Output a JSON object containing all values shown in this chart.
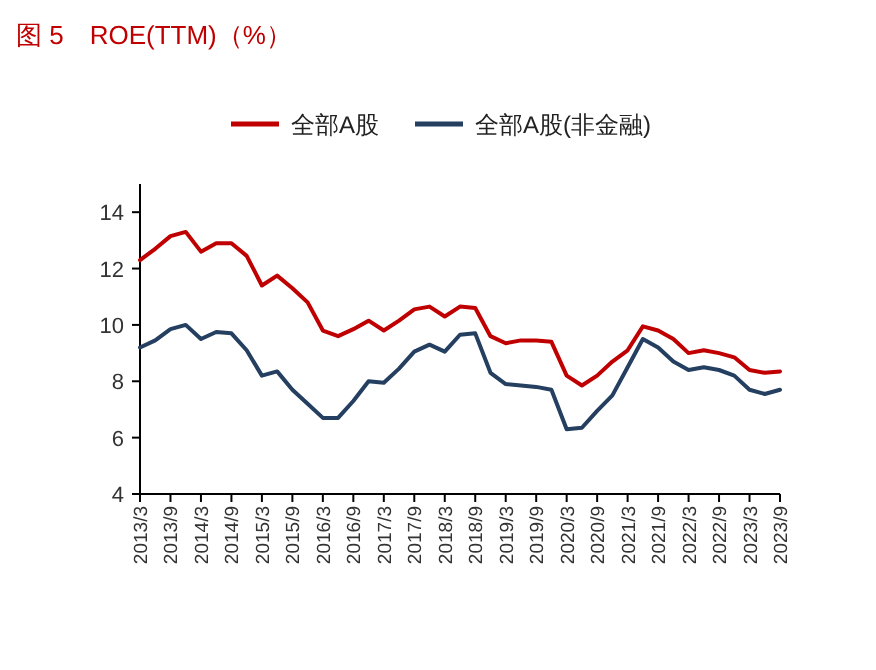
{
  "chart_data": {
    "type": "line",
    "title": "图 5　ROE(TTM)（%）",
    "categories": [
      "2013/3",
      null,
      "2013/9",
      null,
      "2014/3",
      null,
      "2014/9",
      null,
      "2015/3",
      null,
      "2015/9",
      null,
      "2016/3",
      null,
      "2016/9",
      null,
      "2017/3",
      null,
      "2017/9",
      null,
      "2018/3",
      null,
      "2018/9",
      null,
      "2019/3",
      null,
      "2019/9",
      null,
      "2020/3",
      null,
      "2020/9",
      null,
      "2021/3",
      null,
      "2021/9",
      null,
      "2022/3",
      null,
      "2022/9",
      null,
      "2023/3",
      null,
      "2023/9"
    ],
    "series": [
      {
        "name": "全部A股",
        "color": "#c00000",
        "values": [
          12.3,
          12.7,
          13.15,
          13.3,
          12.6,
          12.9,
          12.9,
          12.45,
          11.4,
          11.75,
          11.3,
          10.8,
          9.8,
          9.6,
          9.85,
          10.15,
          9.8,
          10.15,
          10.55,
          10.65,
          10.3,
          10.65,
          10.6,
          9.6,
          9.35,
          9.45,
          9.45,
          9.4,
          8.2,
          7.85,
          8.2,
          8.7,
          9.1,
          9.95,
          9.8,
          9.5,
          9.0,
          9.1,
          9.0,
          8.85,
          8.4,
          8.3,
          8.35
        ]
      },
      {
        "name": "全部A股(非金融)",
        "color": "#243f60",
        "values": [
          9.2,
          9.45,
          9.85,
          10.0,
          9.5,
          9.75,
          9.7,
          9.1,
          8.2,
          8.35,
          7.7,
          7.2,
          6.7,
          6.7,
          7.3,
          8.0,
          7.95,
          8.45,
          9.05,
          9.3,
          9.05,
          9.65,
          9.7,
          8.3,
          7.9,
          7.85,
          7.8,
          7.7,
          6.3,
          6.35,
          6.95,
          7.5,
          8.5,
          9.5,
          9.2,
          8.7,
          8.4,
          8.5,
          8.4,
          8.2,
          7.7,
          7.55,
          7.7
        ]
      }
    ],
    "ylim": [
      4,
      15
    ],
    "yticks": [
      4,
      6,
      8,
      10,
      12,
      14
    ],
    "legend": "top",
    "grid": false
  }
}
